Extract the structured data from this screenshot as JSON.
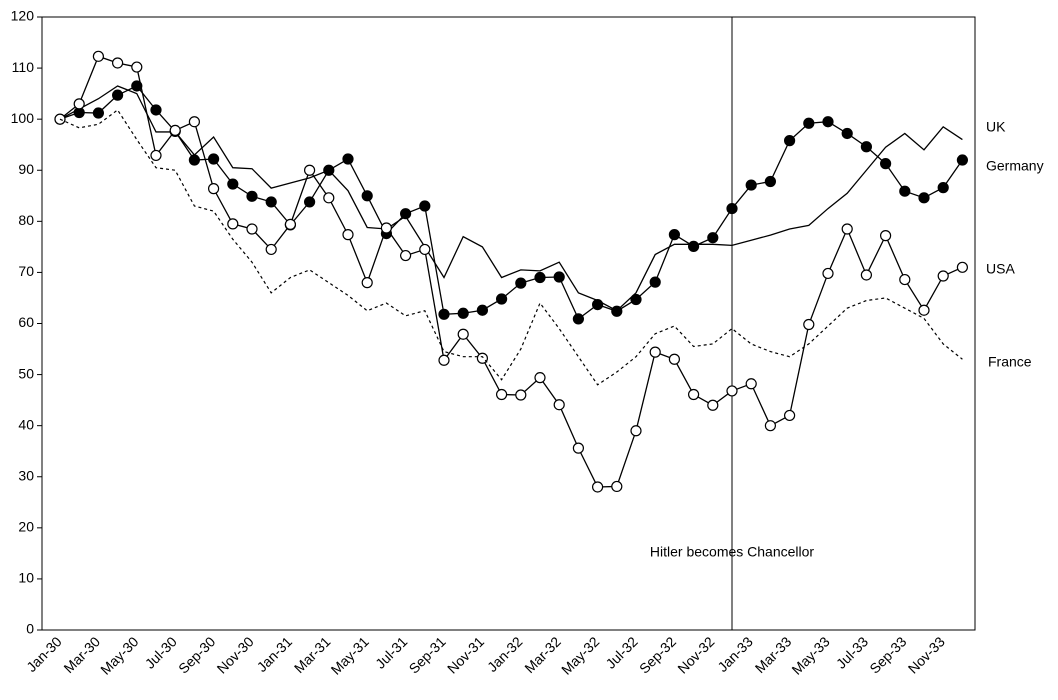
{
  "chart_data": {
    "type": "line",
    "categories": [
      "Jan-30",
      null,
      "Mar-30",
      null,
      "May-30",
      null,
      "Jul-30",
      null,
      "Sep-30",
      null,
      "Nov-30",
      null,
      "Jan-31",
      null,
      "Mar-31",
      null,
      "May-31",
      null,
      "Jul-31",
      null,
      "Sep-31",
      null,
      "Nov-31",
      null,
      "Jan-32",
      null,
      "Mar-32",
      null,
      "May-32",
      null,
      "Jul-32",
      null,
      "Sep-32",
      null,
      "Nov-32",
      null,
      "Jan-33",
      null,
      "Mar-33",
      null,
      "May-33",
      null,
      "Jul-33",
      null,
      "Sep-33",
      null,
      "Nov-33",
      null
    ],
    "series": [
      {
        "name": "UK",
        "color": "#000000",
        "style": "solid",
        "marker": "none",
        "values": [
          100,
          102,
          104,
          106.5,
          105,
          97.5,
          97.5,
          93,
          96.5,
          90.5,
          90.3,
          86.5,
          87.5,
          88.5,
          90,
          86,
          78.8,
          78.5,
          81,
          75,
          69,
          77,
          75,
          69,
          70.5,
          70.3,
          72,
          66,
          64.5,
          62.5,
          66,
          73.5,
          75.5,
          75.5,
          75.5,
          75.3,
          76.3,
          77.3,
          78.5,
          79.2,
          82.5,
          85.5,
          90,
          94.5,
          97.2,
          94,
          98.5,
          96
        ]
      },
      {
        "name": "Germany",
        "color": "#000000",
        "style": "solid",
        "marker": "filled",
        "values": [
          100,
          101.3,
          101.2,
          104.7,
          106.5,
          101.8,
          97.6,
          92,
          92.2,
          87.3,
          84.9,
          83.8,
          79.3,
          83.8,
          90,
          92.2,
          85,
          77.6,
          81.5,
          83,
          61.8,
          62,
          62.6,
          64.8,
          67.9,
          69,
          69.1,
          60.9,
          63.7,
          62.4,
          64.7,
          68.1,
          77.4,
          75.1,
          76.8,
          82.5,
          87.1,
          87.8,
          95.8,
          99.2,
          99.5,
          97.2,
          94.6,
          91.3,
          85.9,
          84.6,
          86.6,
          92
        ]
      },
      {
        "name": "USA",
        "color": "#000000",
        "style": "solid",
        "marker": "open",
        "values": [
          100,
          103,
          112.3,
          111,
          110.2,
          92.9,
          97.8,
          99.5,
          86.4,
          79.5,
          78.5,
          74.5,
          79.4,
          90,
          84.6,
          77.4,
          68,
          78.7,
          73.3,
          74.5,
          52.8,
          57.9,
          53.2,
          46.1,
          46,
          49.4,
          44.1,
          35.6,
          28,
          28.1,
          39,
          54.4,
          53,
          46.1,
          44,
          46.8,
          48.2,
          40,
          42,
          59.8,
          69.8,
          78.5,
          69.5,
          77.2,
          68.6,
          62.6,
          69.3,
          71
        ]
      },
      {
        "name": "France",
        "color": "#000000",
        "style": "dotted",
        "marker": "none",
        "values": [
          100,
          98.3,
          99,
          101.8,
          96,
          90.5,
          90,
          83,
          82,
          76.5,
          72,
          66,
          69,
          70.5,
          68,
          65.5,
          62.5,
          64,
          61.5,
          62.5,
          54.5,
          53.5,
          53.5,
          49,
          55,
          64,
          59,
          53.5,
          48,
          50.5,
          53.5,
          58,
          59.5,
          55.5,
          56,
          59,
          56,
          54.5,
          53.5,
          56,
          59.5,
          63,
          64.5,
          65,
          63,
          61,
          56,
          53
        ]
      }
    ],
    "ylim": [
      0,
      120
    ],
    "yticks": [
      0,
      10,
      20,
      30,
      40,
      50,
      60,
      70,
      80,
      90,
      100,
      110,
      120
    ],
    "grid": false,
    "annotation": "Hitler becomes Chancellor"
  }
}
